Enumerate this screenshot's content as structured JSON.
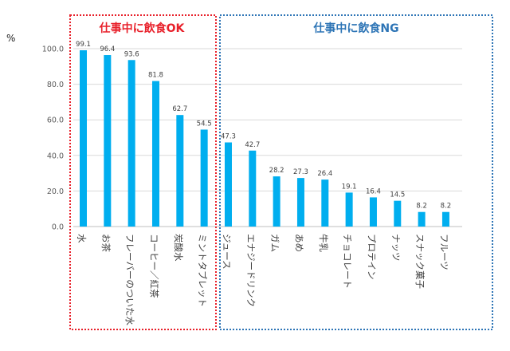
{
  "chart_data": {
    "type": "bar",
    "categories": [
      "水",
      "お茶",
      "フレーバーのついた水",
      "コーヒー／紅茶",
      "炭酸水",
      "ミントタブレット",
      "ジュース",
      "エナジードリンク",
      "ガム",
      "あめ",
      "牛乳",
      "チョコレート",
      "プロテイン",
      "ナッツ",
      "スナック菓子",
      "フルーツ"
    ],
    "values": [
      99.1,
      96.4,
      93.6,
      81.8,
      62.7,
      54.5,
      47.3,
      42.7,
      28.2,
      27.3,
      26.4,
      19.1,
      16.4,
      14.5,
      8.2,
      8.2
    ],
    "data_labels": [
      "99.1",
      "96.4",
      "93.6",
      "81.8",
      "62.7",
      "54.5",
      "47.3",
      "42.7",
      "28.2",
      "27.3",
      "26.4",
      "19.1",
      "16.4",
      "14.5",
      "8.2",
      "8.2"
    ],
    "ylabel": "%",
    "ylim": [
      0,
      100
    ],
    "yticks": [
      0,
      20,
      40,
      60,
      80,
      100
    ],
    "ytick_labels": [
      "0.0",
      "20.0",
      "40.0",
      "60.0",
      "80.0",
      "100.0"
    ],
    "grid": true,
    "bar_color": "#00aeef",
    "groups": [
      {
        "title": "仕事中に飲食OK",
        "color": "#e8202a",
        "start": 0,
        "end": 5
      },
      {
        "title": "仕事中に飲食NG",
        "color": "#2e75b6",
        "start": 6,
        "end": 15
      }
    ]
  }
}
